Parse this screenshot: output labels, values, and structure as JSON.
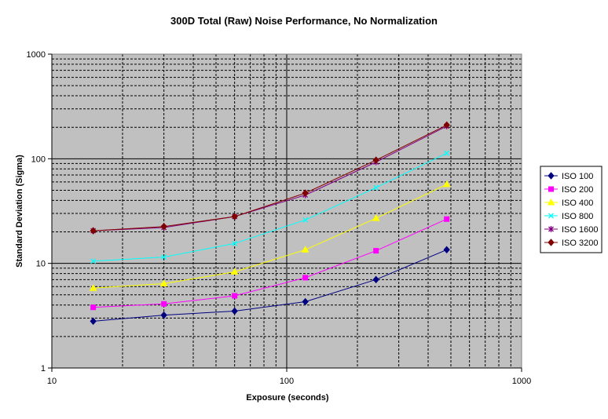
{
  "chart_data": {
    "type": "line",
    "title": "300D Total (Raw) Noise Performance, No Normalization",
    "xlabel": "Exposure (seconds)",
    "ylabel": "Standard Deviation (Sigma)",
    "x_scale": "log",
    "y_scale": "log",
    "xlim": [
      10,
      1000
    ],
    "ylim": [
      1,
      1000
    ],
    "x_ticks": [
      "10",
      "100",
      "1000"
    ],
    "y_ticks": [
      "1",
      "10",
      "100",
      "1000"
    ],
    "grid": "major and minor, dashed minor lines",
    "plot_background": "#c0c0c0",
    "legend_position": "right",
    "x": [
      15,
      30,
      60,
      120,
      240,
      480
    ],
    "series": [
      {
        "name": "ISO 100",
        "color": "#000080",
        "marker": "diamond",
        "values": [
          2.8,
          3.2,
          3.5,
          4.3,
          7.0,
          13.5
        ]
      },
      {
        "name": "ISO 200",
        "color": "#ff00ff",
        "marker": "square",
        "values": [
          3.8,
          4.1,
          4.9,
          7.3,
          13.2,
          26.5
        ]
      },
      {
        "name": "ISO 400",
        "color": "#ffff00",
        "marker": "triangle",
        "values": [
          5.8,
          6.4,
          8.3,
          13.5,
          27.0,
          57.0
        ]
      },
      {
        "name": "ISO 800",
        "color": "#00ffff",
        "marker": "x",
        "values": [
          10.5,
          11.5,
          15.5,
          26.0,
          53.0,
          113.0
        ]
      },
      {
        "name": "ISO 1600",
        "color": "#800080",
        "marker": "star",
        "values": [
          20.5,
          22.0,
          28.0,
          45.0,
          93.0,
          205.0
        ]
      },
      {
        "name": "ISO 3200",
        "color": "#800000",
        "marker": "diamond",
        "values": [
          20.5,
          22.5,
          28.0,
          47.0,
          97.0,
          210.0
        ]
      }
    ]
  }
}
